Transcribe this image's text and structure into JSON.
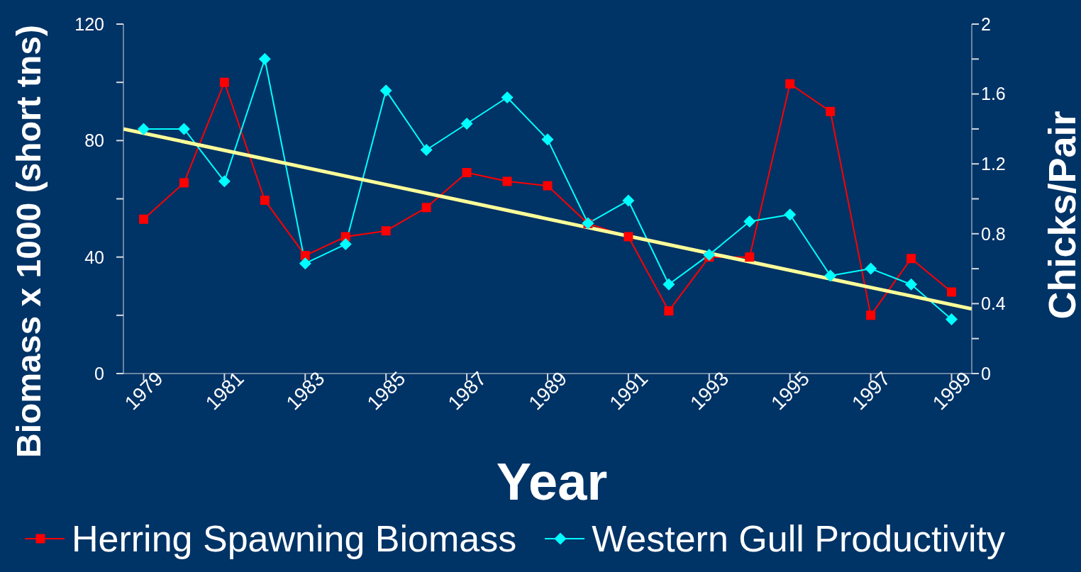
{
  "chart_data": {
    "type": "line",
    "xlabel": "Year",
    "ylabel": "Biomass x 1000 (short tns)",
    "y2label": "Chicks/Pair",
    "x": [
      1979,
      1980,
      1981,
      1982,
      1983,
      1984,
      1985,
      1986,
      1987,
      1988,
      1989,
      1990,
      1991,
      1992,
      1993,
      1994,
      1995,
      1996,
      1997,
      1998,
      1999
    ],
    "series": [
      {
        "name": "Herring Spawning Biomass",
        "color": "#ff0000",
        "marker": "square",
        "values": [
          53,
          65.5,
          100,
          59.5,
          40.5,
          47,
          49,
          57,
          69,
          66,
          64.5,
          51.5,
          47,
          21.5,
          40,
          40,
          99.5,
          90,
          20,
          39.5,
          28
        ]
      },
      {
        "name": "Western Gull Productivity",
        "color": "#00ffff",
        "marker": "diamond",
        "axis": "y2",
        "values": [
          1.4,
          1.4,
          1.1,
          1.8,
          0.63,
          0.74,
          1.62,
          1.28,
          1.43,
          1.58,
          1.34,
          0.86,
          0.99,
          0.51,
          0.68,
          0.87,
          0.91,
          0.56,
          0.6,
          0.51,
          0.31
        ]
      },
      {
        "type": "line",
        "color": "#ffff99",
        "marker": "none",
        "axis": "y2",
        "x": [
          1978.5,
          1999.5
        ],
        "values": [
          1.4,
          0.37
        ]
      }
    ],
    "xlim": [
      1978.5,
      1999.5
    ],
    "xticks": [
      1979,
      1981,
      1983,
      1985,
      1987,
      1989,
      1991,
      1993,
      1995,
      1997,
      1999
    ],
    "ylim": [
      0,
      120
    ],
    "yticks": [
      0,
      {
        "value": 20,
        "label": null
      },
      40,
      {
        "value": 60,
        "label": null
      },
      80,
      {
        "value": 100,
        "label": null
      },
      120
    ],
    "y2lim": [
      0,
      2
    ],
    "y2ticks": [
      0,
      {
        "value": 0.2,
        "label": null
      },
      0.4,
      {
        "value": 0.6,
        "label": null
      },
      0.8,
      {
        "value": 1.0,
        "label": null
      },
      1.2,
      {
        "value": 1.4,
        "label": null
      },
      1.6,
      {
        "value": 1.8,
        "label": null
      },
      2
    ],
    "legend": "bottom"
  }
}
